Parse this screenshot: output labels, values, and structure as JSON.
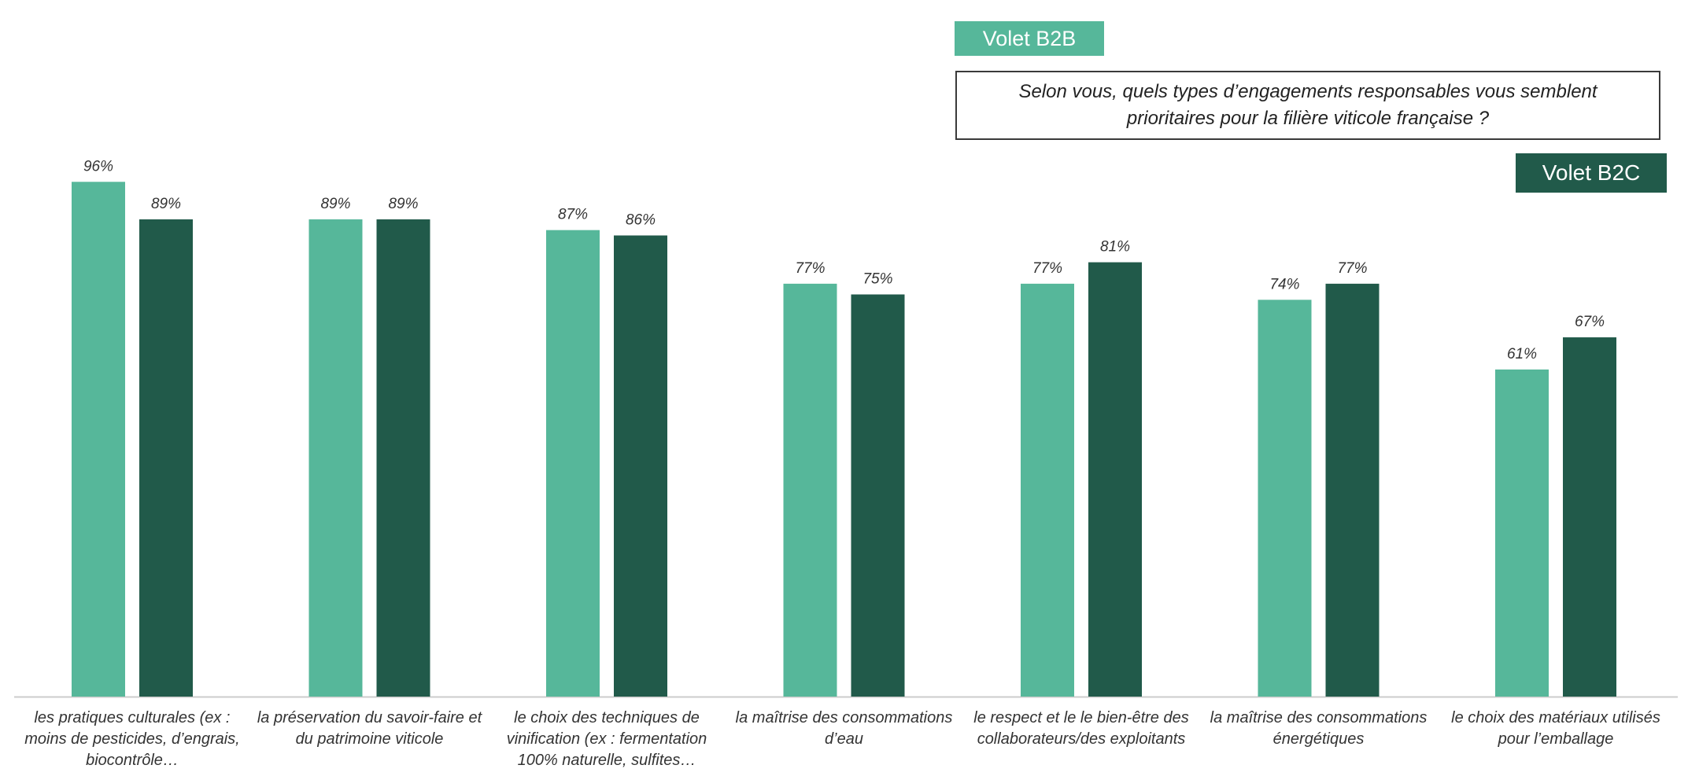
{
  "tags": {
    "b2b": "Volet B2B",
    "b2c": "Volet B2C"
  },
  "question": "Selon vous, quels types d’engagements responsables vous semblent prioritaires pour la filière viticole française ?",
  "colors": {
    "b2b": "#56b79a",
    "b2c": "#215a4a",
    "axis": "#cccccc",
    "label": "#333333"
  },
  "chart_data": {
    "type": "bar",
    "categories": [
      "les pratiques culturales (ex : moins de pesticides, d’engrais, biocontrôle…",
      "la préservation du savoir-faire et du patrimoine viticole",
      "le choix des techniques de vinification (ex : fermentation 100% naturelle, sulfites…",
      "la maîtrise des consommations d’eau",
      "le respect et le le bien-être des collaborateurs/des exploitants",
      "la maîtrise des consommations énergétiques",
      "le choix des matériaux utilisés pour l’emballage"
    ],
    "series": [
      {
        "name": "Volet B2B",
        "values": [
          96,
          89,
          87,
          77,
          77,
          74,
          61
        ],
        "labels": [
          "96%",
          "89%",
          "87%",
          "77%",
          "77%",
          "74%",
          "61%"
        ]
      },
      {
        "name": "Volet B2C",
        "values": [
          89,
          89,
          86,
          75,
          81,
          77,
          67
        ],
        "labels": [
          "89%",
          "89%",
          "86%",
          "75%",
          "81%",
          "77%",
          "67%"
        ]
      }
    ],
    "ylim": [
      0,
      100
    ],
    "grid": false,
    "data_labels": true
  }
}
